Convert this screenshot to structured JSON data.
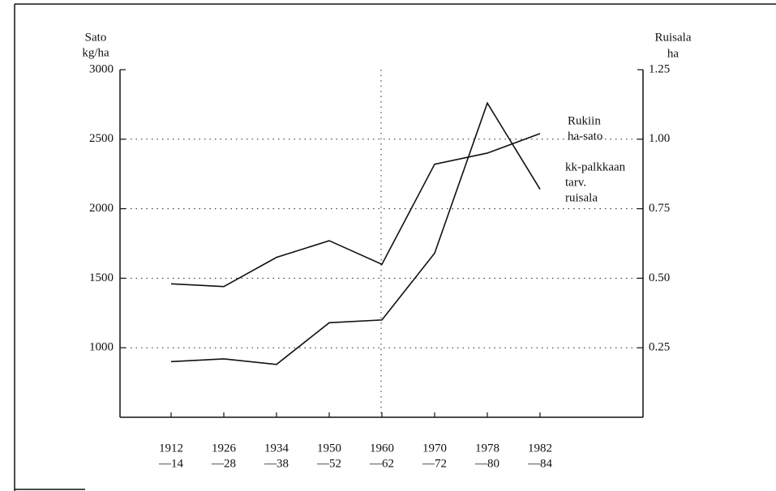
{
  "chart_data": {
    "type": "line",
    "ylabel": [
      "Sato",
      "kg/ha"
    ],
    "y2label": [
      "Ruisala",
      "ha"
    ],
    "categories": [
      [
        "1912",
        "—14"
      ],
      [
        "1926",
        "—28"
      ],
      [
        "1934",
        "—38"
      ],
      [
        "1950",
        "—52"
      ],
      [
        "1960",
        "—62"
      ],
      [
        "1970",
        "—72"
      ],
      [
        "1978",
        "—80"
      ],
      [
        "1982",
        "—84"
      ]
    ],
    "ylim": [
      500,
      3000
    ],
    "yticks": [
      1000,
      1500,
      2000,
      2500,
      3000
    ],
    "y2lim": [
      0,
      1.25
    ],
    "y2ticks": [
      0.25,
      {
        "value": 0.5,
        "label": "0.50"
      },
      0.75,
      {
        "value": 1.0,
        "label": "1.00"
      },
      1.25
    ],
    "grid": true,
    "series": [
      {
        "name": [
          "Rukiin",
          "ha-sato"
        ],
        "color": "#111111",
        "values": [
          1460,
          1440,
          1650,
          1770,
          1600,
          2320,
          2400,
          2540
        ]
      },
      {
        "name": [
          "kk-palkkaan",
          "tarv.",
          "ruisala"
        ],
        "color": "#111111",
        "axis": "y2",
        "values": [
          0.2,
          0.21,
          0.19,
          0.34,
          0.35,
          0.59,
          1.13,
          0.82
        ]
      }
    ]
  }
}
